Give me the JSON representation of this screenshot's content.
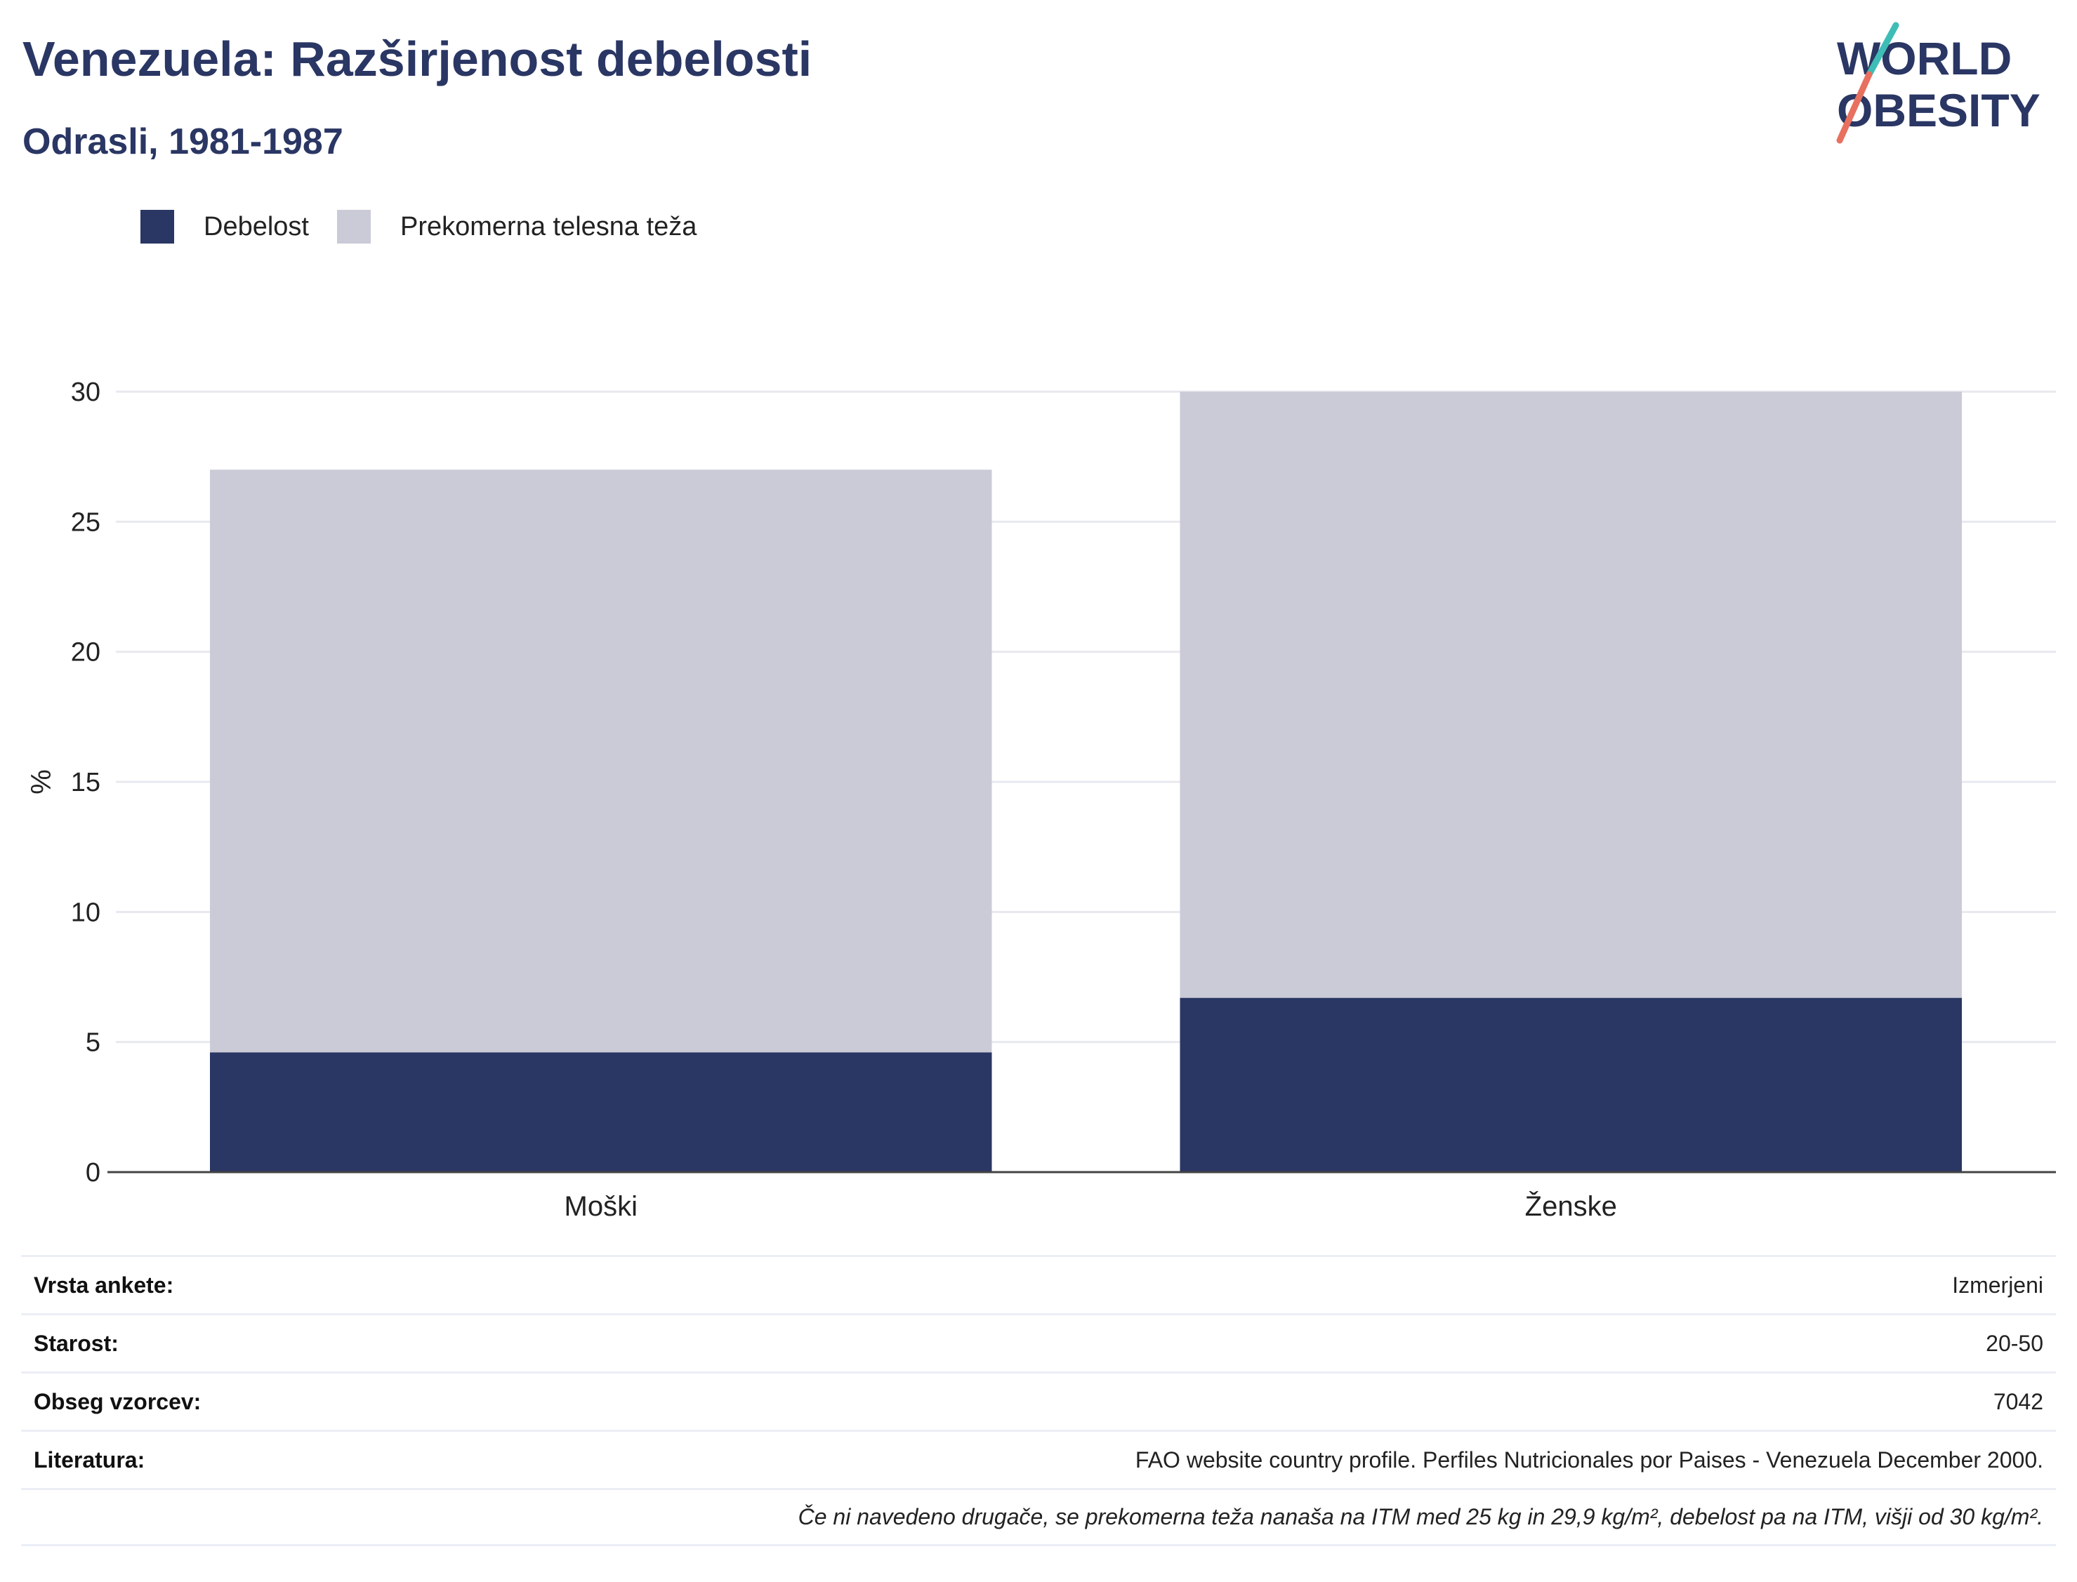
{
  "header": {
    "title": "Venezuela: Razširjenost debelosti",
    "subtitle": "Odrasli, 1981-1987"
  },
  "logo": {
    "line1": "WORLD",
    "line2": "OBESITY"
  },
  "colors": {
    "obesity": "#2a3663",
    "overweight": "#cacbd7",
    "text_accent": "#2a3663",
    "logo_teal": "#3dbdb6",
    "logo_coral": "#e8705f"
  },
  "chart_data": {
    "type": "bar",
    "stacked": true,
    "categories": [
      "Moški",
      "Ženske"
    ],
    "series": [
      {
        "name": "Debelost",
        "values": [
          4.6,
          6.7
        ]
      },
      {
        "name": "Prekomerna telesna teža",
        "values": [
          22.4,
          23.3
        ]
      }
    ],
    "totals": [
      27.0,
      30.0
    ],
    "ylabel": "%",
    "ylim": [
      0,
      30
    ],
    "yticks": [
      0,
      5,
      10,
      15,
      20,
      25,
      30
    ],
    "grid": true,
    "legend_position": "top-left"
  },
  "info": {
    "rows": [
      {
        "label": "Vrsta ankete:",
        "value": "Izmerjeni"
      },
      {
        "label": "Starost:",
        "value": "20-50"
      },
      {
        "label": "Obseg vzorcev:",
        "value": "7042"
      },
      {
        "label": "Literatura:",
        "value": "FAO website country profile. Perfiles Nutricionales por Paises - Venezuela December 2000."
      }
    ],
    "note": "Če ni navedeno drugače, se prekomerna teža nanaša na ITM med 25 kg in 29,9 kg/m², debelost pa na ITM, višji od 30 kg/m²."
  }
}
